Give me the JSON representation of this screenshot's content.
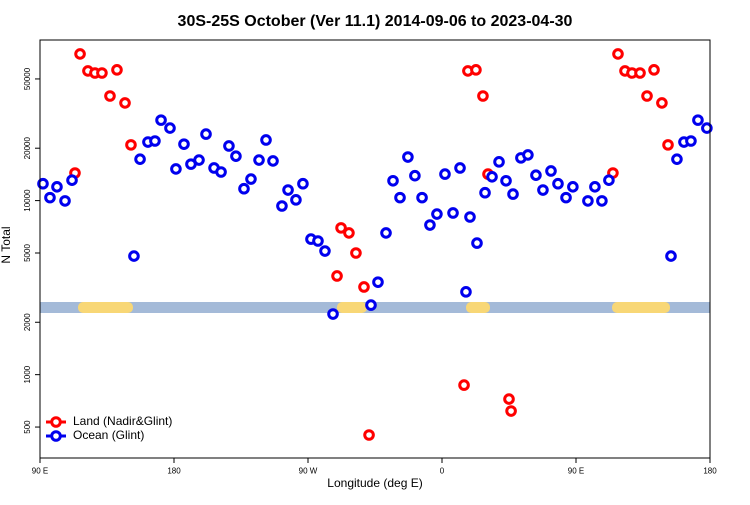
{
  "chart_data": {
    "type": "scatter",
    "title": "30S-25S October (Ver 11.1)   2014-09-06 to 2023-04-30",
    "x_label": "Longitude (deg E)",
    "y_label": "N Total",
    "xlim": [
      90,
      540
    ],
    "xticks": [
      {
        "value": 90,
        "label": "90 E"
      },
      {
        "value": 180,
        "label": "180"
      },
      {
        "value": 270,
        "label": "90 W"
      },
      {
        "value": 360,
        "label": "0"
      },
      {
        "value": 450,
        "label": "90 E"
      },
      {
        "value": 540,
        "label": "180"
      }
    ],
    "ylim": [
      332,
      83700
    ],
    "log_y": true,
    "yticks": [
      500,
      1000,
      2000,
      5000,
      10000,
      20000,
      50000
    ],
    "legend": "lower left",
    "series": [
      {
        "name": "Land (Nadir&Glint)",
        "color": "#ff0000",
        "x": [
          113.5,
          116.9,
          122.2,
          126.9,
          131.6,
          137.0,
          141.7,
          147.1,
          151.1,
          289.5,
          292.2,
          297.5,
          302.2,
          307.6,
          311.0,
          374.8,
          377.4,
          382.8,
          387.5,
          390.9,
          405.0,
          406.4,
          474.8,
          478.2,
          482.9,
          487.6,
          493.0,
          497.7,
          502.4,
          507.7,
          511.8
        ],
        "values": [
          14400,
          69600,
          55600,
          54100,
          54100,
          39900,
          56400,
          36400,
          20900,
          3690,
          6970,
          6520,
          5000,
          3190,
          450,
          871,
          55600,
          56400,
          39900,
          14200,
          724,
          618,
          14400,
          69600,
          55600,
          54100,
          54100,
          39900,
          56400,
          36400,
          20900
        ]
      },
      {
        "name": "Ocean (Glint)",
        "color": "#0000ee",
        "x": [
          92.0,
          96.7,
          101.4,
          106.8,
          111.5,
          153.1,
          157.2,
          162.5,
          167.2,
          171.3,
          177.3,
          181.3,
          186.7,
          191.4,
          196.8,
          201.5,
          206.9,
          211.6,
          216.9,
          221.6,
          227.0,
          231.7,
          237.1,
          241.8,
          246.5,
          252.5,
          256.6,
          261.9,
          266.6,
          272.0,
          276.7,
          281.4,
          286.8,
          312.3,
          317.0,
          322.4,
          327.1,
          331.8,
          337.1,
          341.8,
          346.6,
          351.9,
          356.6,
          362.0,
          367.4,
          372.1,
          376.1,
          378.8,
          383.5,
          388.9,
          393.6,
          398.3,
          403.0,
          407.7,
          413.0,
          417.7,
          423.1,
          427.8,
          433.2,
          437.9,
          443.3,
          447.9,
          458.0,
          462.7,
          467.4,
          472.1,
          513.8,
          517.8,
          522.5,
          527.2,
          531.9,
          537.9
        ],
        "values": [
          12500,
          10400,
          12000,
          9960,
          13100,
          4800,
          17300,
          21700,
          22000,
          29000,
          26100,
          15200,
          21100,
          16200,
          17100,
          24100,
          15400,
          14600,
          20600,
          18000,
          11700,
          13300,
          17100,
          22300,
          16900,
          9310,
          11500,
          10100,
          12500,
          6010,
          5860,
          5130,
          2230,
          2510,
          3400,
          6520,
          13000,
          10400,
          17800,
          13900,
          10400,
          7240,
          8370,
          14200,
          8490,
          15400,
          2990,
          8050,
          5700,
          11100,
          13700,
          16700,
          13000,
          10900,
          17600,
          18300,
          14000,
          11500,
          14800,
          12500,
          10400,
          12000,
          9960,
          12000,
          9960,
          13100,
          4800,
          17300,
          21700,
          22000,
          29000,
          26100
        ]
      }
    ]
  }
}
